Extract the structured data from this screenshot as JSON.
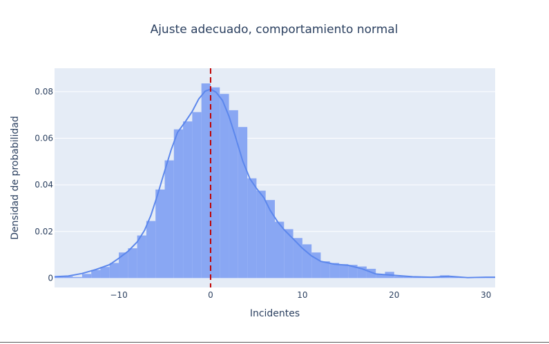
{
  "chart_data": {
    "type": "bar",
    "title": "Ajuste adecuado, comportamiento normal",
    "xlabel": "Incidentes",
    "ylabel": "Densidad de probabilidad",
    "xlim": [
      -17,
      31
    ],
    "ylim": [
      -0.004,
      0.09
    ],
    "x_ticks": [
      -10,
      0,
      10,
      20,
      30
    ],
    "x_tick_labels": [
      "−10",
      "0",
      "10",
      "20",
      "30"
    ],
    "y_ticks": [
      0,
      0.02,
      0.04,
      0.06,
      0.08
    ],
    "y_tick_labels": [
      "0",
      "0.02",
      "0.04",
      "0.06",
      "0.08"
    ],
    "grid": true,
    "colors": {
      "plot_bg": "#e5ecf6",
      "bar": "#89a7f3",
      "kde": "#5c87ec",
      "mean_line": "#c00000",
      "text": "#2a3f5f"
    },
    "histogram": {
      "bin_width": 1,
      "bins": [
        {
          "x0": -17,
          "value": 0.0008
        },
        {
          "x0": -16,
          "value": 0.0008
        },
        {
          "x0": -15,
          "value": 0.0005
        },
        {
          "x0": -14,
          "value": 0.0018
        },
        {
          "x0": -13,
          "value": 0.0035
        },
        {
          "x0": -12,
          "value": 0.0048
        },
        {
          "x0": -11,
          "value": 0.0065
        },
        {
          "x0": -10,
          "value": 0.011
        },
        {
          "x0": -9,
          "value": 0.0128
        },
        {
          "x0": -8,
          "value": 0.0183
        },
        {
          "x0": -7,
          "value": 0.0245
        },
        {
          "x0": -6,
          "value": 0.038
        },
        {
          "x0": -5,
          "value": 0.0505
        },
        {
          "x0": -4,
          "value": 0.0638
        },
        {
          "x0": -3,
          "value": 0.0672
        },
        {
          "x0": -2,
          "value": 0.0712
        },
        {
          "x0": -1,
          "value": 0.0835
        },
        {
          "x0": 0,
          "value": 0.0818
        },
        {
          "x0": 1,
          "value": 0.079
        },
        {
          "x0": 2,
          "value": 0.072
        },
        {
          "x0": 3,
          "value": 0.0648
        },
        {
          "x0": 4,
          "value": 0.0428
        },
        {
          "x0": 5,
          "value": 0.0375
        },
        {
          "x0": 6,
          "value": 0.0335
        },
        {
          "x0": 7,
          "value": 0.0242
        },
        {
          "x0": 8,
          "value": 0.021
        },
        {
          "x0": 9,
          "value": 0.0172
        },
        {
          "x0": 10,
          "value": 0.0145
        },
        {
          "x0": 11,
          "value": 0.011
        },
        {
          "x0": 12,
          "value": 0.0072
        },
        {
          "x0": 13,
          "value": 0.0065
        },
        {
          "x0": 14,
          "value": 0.006
        },
        {
          "x0": 15,
          "value": 0.0057
        },
        {
          "x0": 16,
          "value": 0.005
        },
        {
          "x0": 17,
          "value": 0.004
        },
        {
          "x0": 18,
          "value": 0.0015
        },
        {
          "x0": 19,
          "value": 0.0027
        },
        {
          "x0": 20,
          "value": 0.0008
        },
        {
          "x0": 21,
          "value": 0.0008
        },
        {
          "x0": 22,
          "value": 0.0004
        },
        {
          "x0": 23,
          "value": 0.0006
        },
        {
          "x0": 24,
          "value": 0.0004
        },
        {
          "x0": 25,
          "value": 0.0012
        },
        {
          "x0": 26,
          "value": 0.0005
        },
        {
          "x0": 27,
          "value": 0.0002
        },
        {
          "x0": 28,
          "value": 0.0003
        },
        {
          "x0": 29,
          "value": 0.0004
        },
        {
          "x0": 30,
          "value": 0.0004
        }
      ]
    },
    "kde": {
      "x": [
        -17,
        -15.5,
        -14,
        -12.5,
        -11,
        -10,
        -9,
        -8,
        -7.2,
        -6.5,
        -5.8,
        -5,
        -4.3,
        -3.6,
        -2.8,
        -2,
        -1.3,
        -0.6,
        0,
        0.6,
        1.3,
        2,
        2.7,
        3.5,
        4.3,
        5,
        5.8,
        6.5,
        7.3,
        8,
        9,
        10,
        11,
        12,
        13.5,
        15,
        16.5,
        18,
        20,
        22,
        24,
        26,
        28,
        30,
        31
      ],
      "y": [
        0.0006,
        0.0009,
        0.002,
        0.0037,
        0.0058,
        0.0085,
        0.0115,
        0.0155,
        0.0205,
        0.027,
        0.0355,
        0.046,
        0.055,
        0.0625,
        0.0668,
        0.0715,
        0.0768,
        0.0802,
        0.081,
        0.0797,
        0.0762,
        0.0695,
        0.0608,
        0.0502,
        0.0425,
        0.0385,
        0.0345,
        0.029,
        0.0242,
        0.0208,
        0.0168,
        0.0128,
        0.0095,
        0.0072,
        0.006,
        0.0055,
        0.004,
        0.0018,
        0.0012,
        0.0006,
        0.0004,
        0.0008,
        0.0002,
        0.0004,
        0.0004
      ]
    },
    "mean_line_x": 0
  }
}
